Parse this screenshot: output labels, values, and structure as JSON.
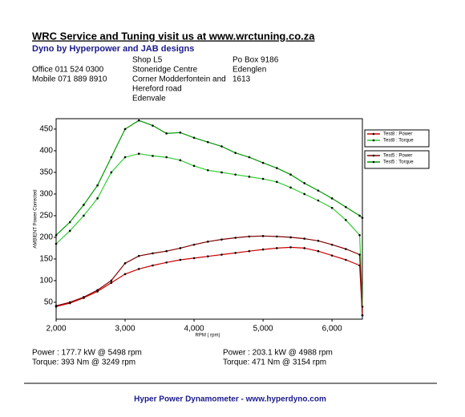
{
  "header": {
    "title": "WRC Service and Tuning visit us at www.wrctuning.co.za",
    "subtitle": "Dyno by Hyperpower and JAB designs",
    "phones": [
      "Office 011 524 0300",
      "Mobile 071 889 8910"
    ],
    "address": [
      "Shop L5",
      "Stoneridge Centre",
      "Corner Modderfontein and",
      "Hereford road",
      "Edenvale"
    ],
    "postal": [
      "Po Box 9186",
      "Edenglen",
      "1613"
    ]
  },
  "chart_data": {
    "type": "line",
    "x_label": "RPM ( rpm)",
    "y_label": "AMBIENT Power Corrected",
    "x": [
      2000,
      2200,
      2400,
      2600,
      2800,
      3000,
      3200,
      3400,
      3600,
      3800,
      4000,
      4200,
      4400,
      4600,
      4800,
      5000,
      5200,
      5400,
      5600,
      5800,
      6000,
      6200,
      6400,
      6440
    ],
    "series": [
      {
        "name": "Test8 : Power",
        "color": "#cc0000",
        "values": [
          40,
          48,
          60,
          75,
          95,
          115,
          127,
          135,
          142,
          148,
          152,
          156,
          160,
          164,
          168,
          172,
          175,
          177,
          175,
          168,
          158,
          148,
          135,
          20
        ]
      },
      {
        "name": "Test8 : Torque",
        "color": "#33cc33",
        "values": [
          185,
          215,
          250,
          290,
          350,
          385,
          393,
          388,
          385,
          378,
          365,
          355,
          350,
          345,
          340,
          335,
          328,
          315,
          300,
          285,
          268,
          240,
          205,
          40
        ]
      },
      {
        "name": "Test5 : Power",
        "color": "#800000",
        "values": [
          42,
          50,
          62,
          78,
          100,
          140,
          157,
          163,
          168,
          175,
          183,
          190,
          195,
          199,
          202,
          203,
          202,
          200,
          197,
          192,
          183,
          173,
          160,
          20
        ]
      },
      {
        "name": "Test5 : Torque",
        "color": "#009900",
        "values": [
          205,
          235,
          275,
          320,
          385,
          450,
          470,
          458,
          440,
          442,
          430,
          420,
          410,
          395,
          385,
          372,
          360,
          345,
          325,
          308,
          290,
          270,
          250,
          245
        ]
      }
    ],
    "xlim": [
      2000,
      6440
    ],
    "ylim": [
      11,
      474
    ],
    "xticks": [
      {
        "value": 2000,
        "label": "2,000"
      },
      {
        "value": 3000,
        "label": "3,000"
      },
      {
        "value": 4000,
        "label": "4,000"
      },
      {
        "value": 5000,
        "label": "5,000"
      },
      {
        "value": 6000,
        "label": "6,000"
      }
    ],
    "yticks": [
      50,
      100,
      150,
      200,
      250,
      300,
      350,
      400,
      450
    ],
    "grid": false,
    "legend": "right"
  },
  "results": [
    [
      "Power : 177.7 kW @ 5498 rpm",
      "Torque: 393 Nm @ 3249 rpm"
    ],
    [
      "Power : 203.1 kW @ 4988 rpm",
      "Torque: 471 Nm @ 3154 rpm"
    ]
  ],
  "footer": "Hyper Power Dynamometer  -  www.hyperdyno.com"
}
